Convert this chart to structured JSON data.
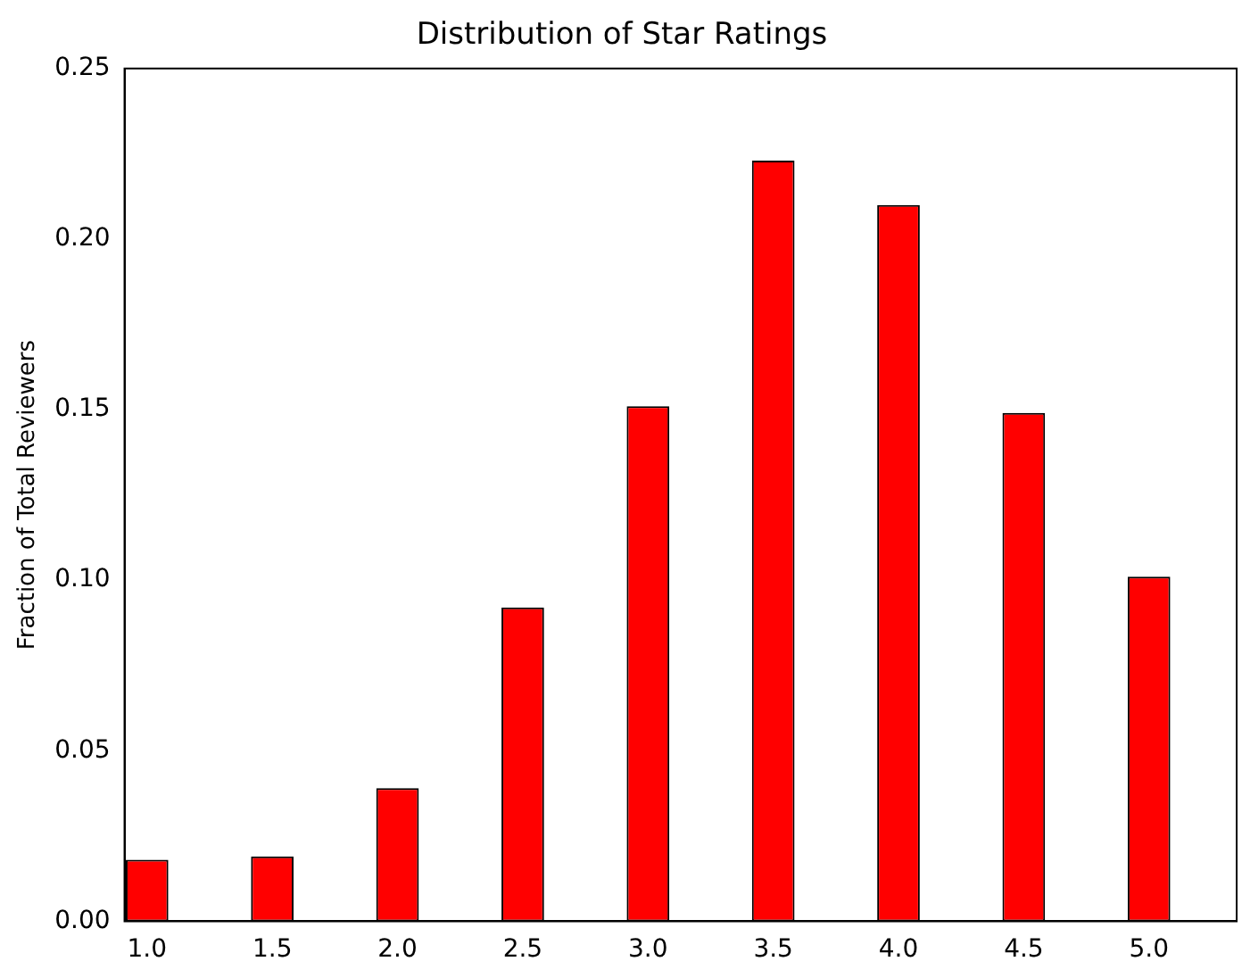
{
  "chart_data": {
    "type": "bar",
    "title": "Distribution of Star Ratings",
    "ylabel": "Fraction of Total Reviewers",
    "x": [
      1.0,
      1.5,
      2.0,
      2.5,
      3.0,
      3.5,
      4.0,
      4.5,
      5.0
    ],
    "values": [
      0.018,
      0.019,
      0.039,
      0.092,
      0.151,
      0.223,
      0.21,
      0.149,
      0.101
    ],
    "color": "#ff0000",
    "xlim": [
      0.91,
      5.35
    ],
    "xticks": [
      {
        "value": 1,
        "label": "1.0"
      },
      {
        "value": 1.5,
        "label": "1.5"
      },
      {
        "value": 2,
        "label": "2.0"
      },
      {
        "value": 2.5,
        "label": "2.5"
      },
      {
        "value": 3,
        "label": "3.0"
      },
      {
        "value": 3.5,
        "label": "3.5"
      },
      {
        "value": 4,
        "label": "4.0"
      },
      {
        "value": 4.5,
        "label": "4.5"
      },
      {
        "value": 5,
        "label": "5.0"
      }
    ],
    "ylim": [
      0,
      0.25
    ],
    "yticks": [
      {
        "value": 0,
        "label": "0.00"
      },
      {
        "value": 0.05,
        "label": "0.05"
      },
      {
        "value": 0.1,
        "label": "0.10"
      },
      {
        "value": 0.15,
        "label": "0.15"
      },
      {
        "value": 0.2,
        "label": "0.20"
      },
      {
        "value": 0.25,
        "label": "0.25"
      }
    ]
  }
}
